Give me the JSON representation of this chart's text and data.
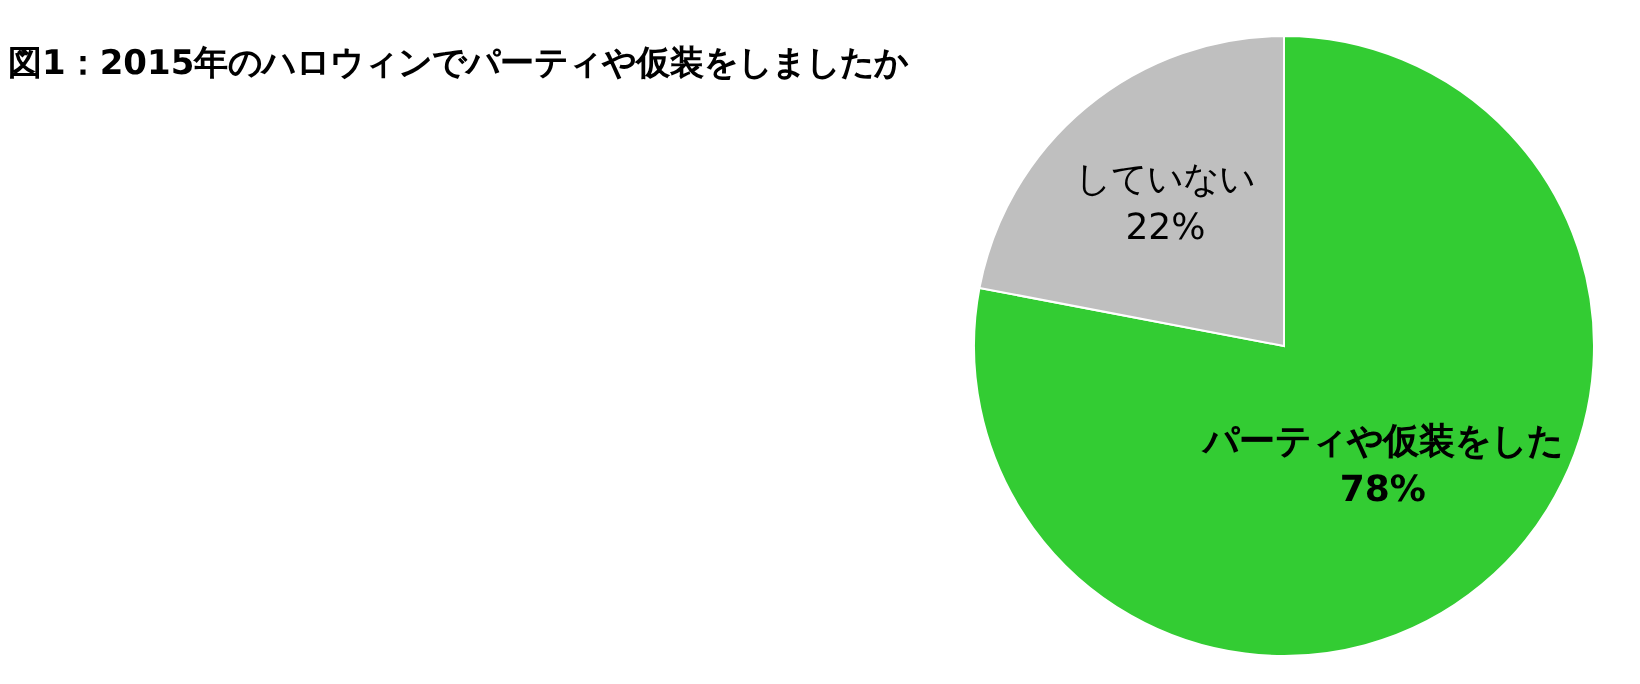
{
  "chart_data": {
    "type": "pie",
    "title": "図1：2015年のハロウィンでパーティや仮装をしましたか",
    "categories": [
      "パーティや仮装をした",
      "していない"
    ],
    "values": [
      78,
      22
    ],
    "colors": [
      "#33cc33",
      "#bfbfbf"
    ],
    "value_labels": [
      "78%",
      "22%"
    ],
    "legend": false
  }
}
